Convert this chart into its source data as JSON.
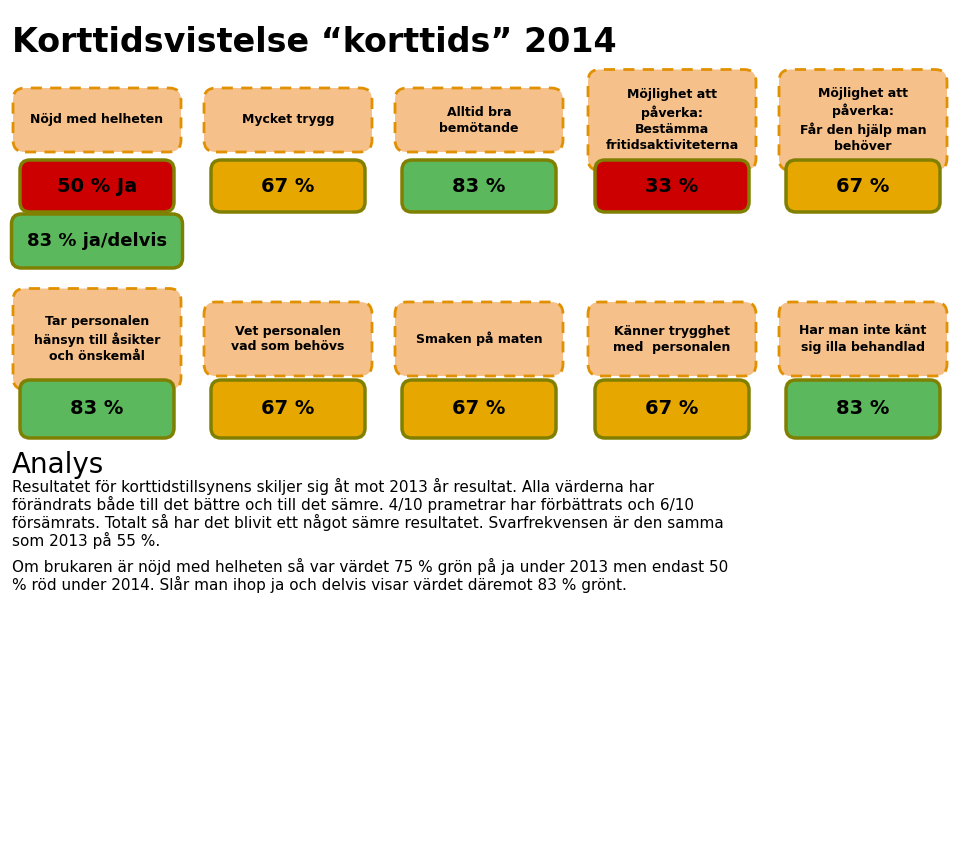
{
  "title": "Korttidsvistelse “korttids” 2014",
  "row1_labels": [
    "Nöjd med helheten",
    "Mycket trygg",
    "Alltid bra\nbemötande",
    "Möjlighet att\npåverka:\nBestämma\nfritidsaktiviteterna",
    "Möjlighet att\npåverka:\nFår den hjälp man\nbehöver"
  ],
  "row1_values": [
    "50 % Ja",
    "67 %",
    "83 %",
    "33 %",
    "67 %"
  ],
  "row1_value_colors": [
    "#cc0000",
    "#e6a800",
    "#5cb85c",
    "#cc0000",
    "#e6a800"
  ],
  "row1_extra_label": "83 % ja/delvis",
  "row1_extra_color": "#5cb85c",
  "row2_labels": [
    "Tar personalen\nhänsyn till åsikter\noch önskemål",
    "Vet personalen\nvad som behövs",
    "Smaken på maten",
    "Känner trygghet\nmed  personalen",
    "Har man inte känt\nsig illa behandlad"
  ],
  "row2_values": [
    "83 %",
    "67 %",
    "67 %",
    "67 %",
    "83 %"
  ],
  "row2_value_colors": [
    "#5cb85c",
    "#e6a800",
    "#e6a800",
    "#e6a800",
    "#5cb85c"
  ],
  "analys_title": "Analys",
  "analys_lines": [
    "Resultatet för korttidstillsynens skiljer sig åt mot 2013 år resultat. Alla värderna har",
    "förändrats både till det bättre och till det sämre. 4/10 prametrar har förbättrats och 6/10",
    "försämrats. Totalt så har det blivit ett något sämre resultatet. Svarfrekvensen är den samma",
    "som 2013 på 55 %.",
    "",
    "Om brukaren är nöjd med helheten så var värdet 75 % grön på ja under 2013 men endast 50",
    "% röd under 2014. Slår man ihop ja och delvis visar värdet däremot 83 % grönt."
  ],
  "box_fill": "#f5c08a",
  "box_edge": "#e09000",
  "val_edge": "#808000",
  "background": "#ffffff"
}
